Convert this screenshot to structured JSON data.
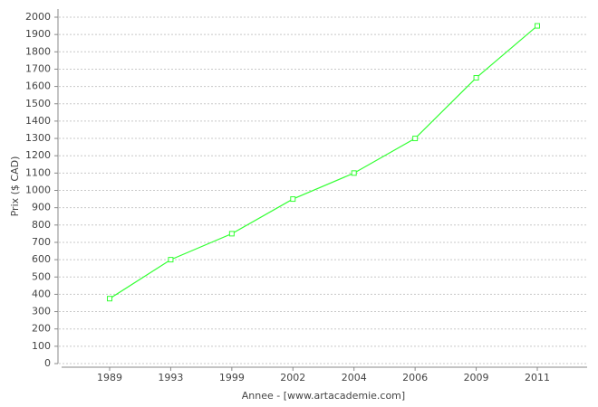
{
  "chart_data": {
    "type": "line",
    "x_label": "Annee - [www.artacademie.com]",
    "y_label": "Prix ($ CAD)",
    "categories": [
      "1989",
      "1993",
      "1999",
      "2002",
      "2004",
      "2006",
      "2009",
      "2011"
    ],
    "values": [
      375,
      600,
      750,
      950,
      1100,
      1300,
      1650,
      1950
    ],
    "color": "#33ff33",
    "ylim": [
      0,
      2000
    ],
    "yticks": [
      0,
      100,
      200,
      300,
      400,
      500,
      600,
      700,
      800,
      900,
      1000,
      1100,
      1200,
      1300,
      1400,
      1500,
      1600,
      1700,
      1800,
      1900,
      2000
    ],
    "grid": true
  }
}
